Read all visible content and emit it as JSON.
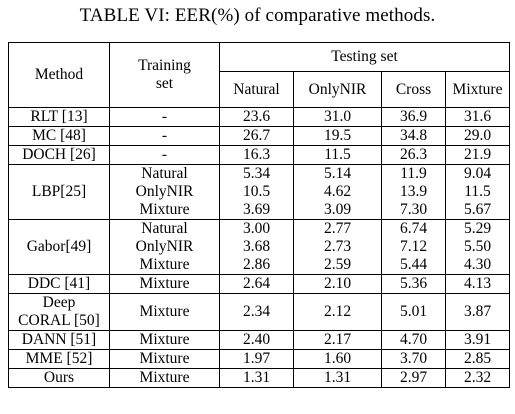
{
  "caption": "TABLE VI: EER(%) of comparative methods.",
  "headers": {
    "method": "Method",
    "training_line1": "Training",
    "training_line2": "set",
    "testing": "Testing set",
    "cols": [
      "Natural",
      "OnlyNIR",
      "Cross",
      "Mixture"
    ]
  },
  "rows": [
    {
      "method": "RLT [13]",
      "training": [
        "-"
      ],
      "values": [
        [
          "23.6"
        ],
        [
          "31.0"
        ],
        [
          "36.9"
        ],
        [
          "31.6"
        ]
      ]
    },
    {
      "method": "MC [48]",
      "training": [
        "-"
      ],
      "values": [
        [
          "26.7"
        ],
        [
          "19.5"
        ],
        [
          "34.8"
        ],
        [
          "29.0"
        ]
      ]
    },
    {
      "method": "DOCH [26]",
      "training": [
        "-"
      ],
      "values": [
        [
          "16.3"
        ],
        [
          "11.5"
        ],
        [
          "26.3"
        ],
        [
          "21.9"
        ]
      ]
    },
    {
      "method": "LBP[25]",
      "training": [
        "Natural",
        "OnlyNIR",
        "Mixture"
      ],
      "values": [
        [
          "5.34",
          "10.5",
          "3.69"
        ],
        [
          "5.14",
          "4.62",
          "3.09"
        ],
        [
          "11.9",
          "13.9",
          "7.30"
        ],
        [
          "9.04",
          "11.5",
          "5.67"
        ]
      ]
    },
    {
      "method": "Gabor[49]",
      "training": [
        "Natural",
        "OnlyNIR",
        "Mixture"
      ],
      "values": [
        [
          "3.00",
          "3.68",
          "2.86"
        ],
        [
          "2.77",
          "2.73",
          "2.59"
        ],
        [
          "6.74",
          "7.12",
          "5.44"
        ],
        [
          "5.29",
          "5.50",
          "4.30"
        ]
      ]
    },
    {
      "method": "DDC [41]",
      "training": [
        "Mixture"
      ],
      "values": [
        [
          "2.64"
        ],
        [
          "2.10"
        ],
        [
          "5.36"
        ],
        [
          "4.13"
        ]
      ]
    },
    {
      "method": "Deep\nCORAL [50]",
      "training": [
        "Mixture"
      ],
      "values": [
        [
          "2.34"
        ],
        [
          "2.12"
        ],
        [
          "5.01"
        ],
        [
          "3.87"
        ]
      ]
    },
    {
      "method": "DANN [51]",
      "training": [
        "Mixture"
      ],
      "values": [
        [
          "2.40"
        ],
        [
          "2.17"
        ],
        [
          "4.70"
        ],
        [
          "3.91"
        ]
      ]
    },
    {
      "method": "MME [52]",
      "training": [
        "Mixture"
      ],
      "values": [
        [
          "1.97"
        ],
        [
          "1.60"
        ],
        [
          "3.70"
        ],
        [
          "2.85"
        ]
      ]
    },
    {
      "method": "Ours",
      "training": [
        "Mixture"
      ],
      "values": [
        [
          "1.31"
        ],
        [
          "1.31"
        ],
        [
          "2.97"
        ],
        [
          "2.32"
        ]
      ],
      "bold_values": true
    }
  ]
}
